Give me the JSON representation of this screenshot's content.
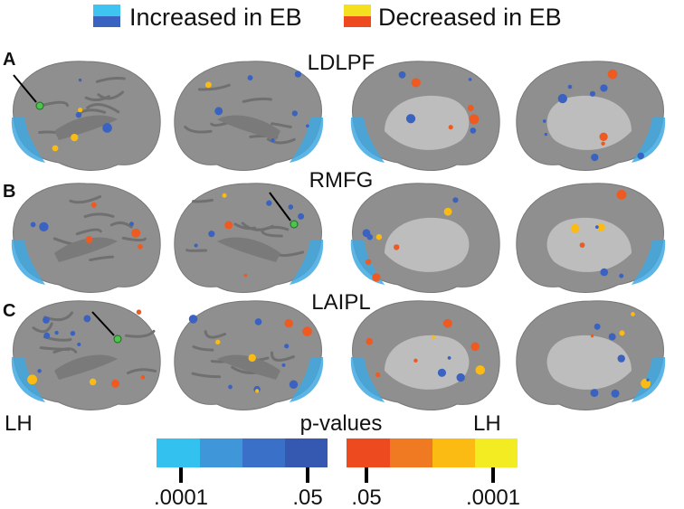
{
  "legend": {
    "items": [
      {
        "label": "Increased in EB"
      },
      {
        "label": "Decreased in EB"
      }
    ]
  },
  "panels": [
    {
      "letter": "A",
      "seed": "LDLPF"
    },
    {
      "letter": "B",
      "seed": "RMFG"
    },
    {
      "letter": "C",
      "seed": "LAIPL"
    }
  ],
  "hemisphere_labels": [
    "LH",
    "LH"
  ],
  "colorbar": {
    "title": "p-values",
    "blue_ticks": [
      ".0001",
      ".05"
    ],
    "orange_ticks": [
      ".05",
      ".0001"
    ]
  }
}
